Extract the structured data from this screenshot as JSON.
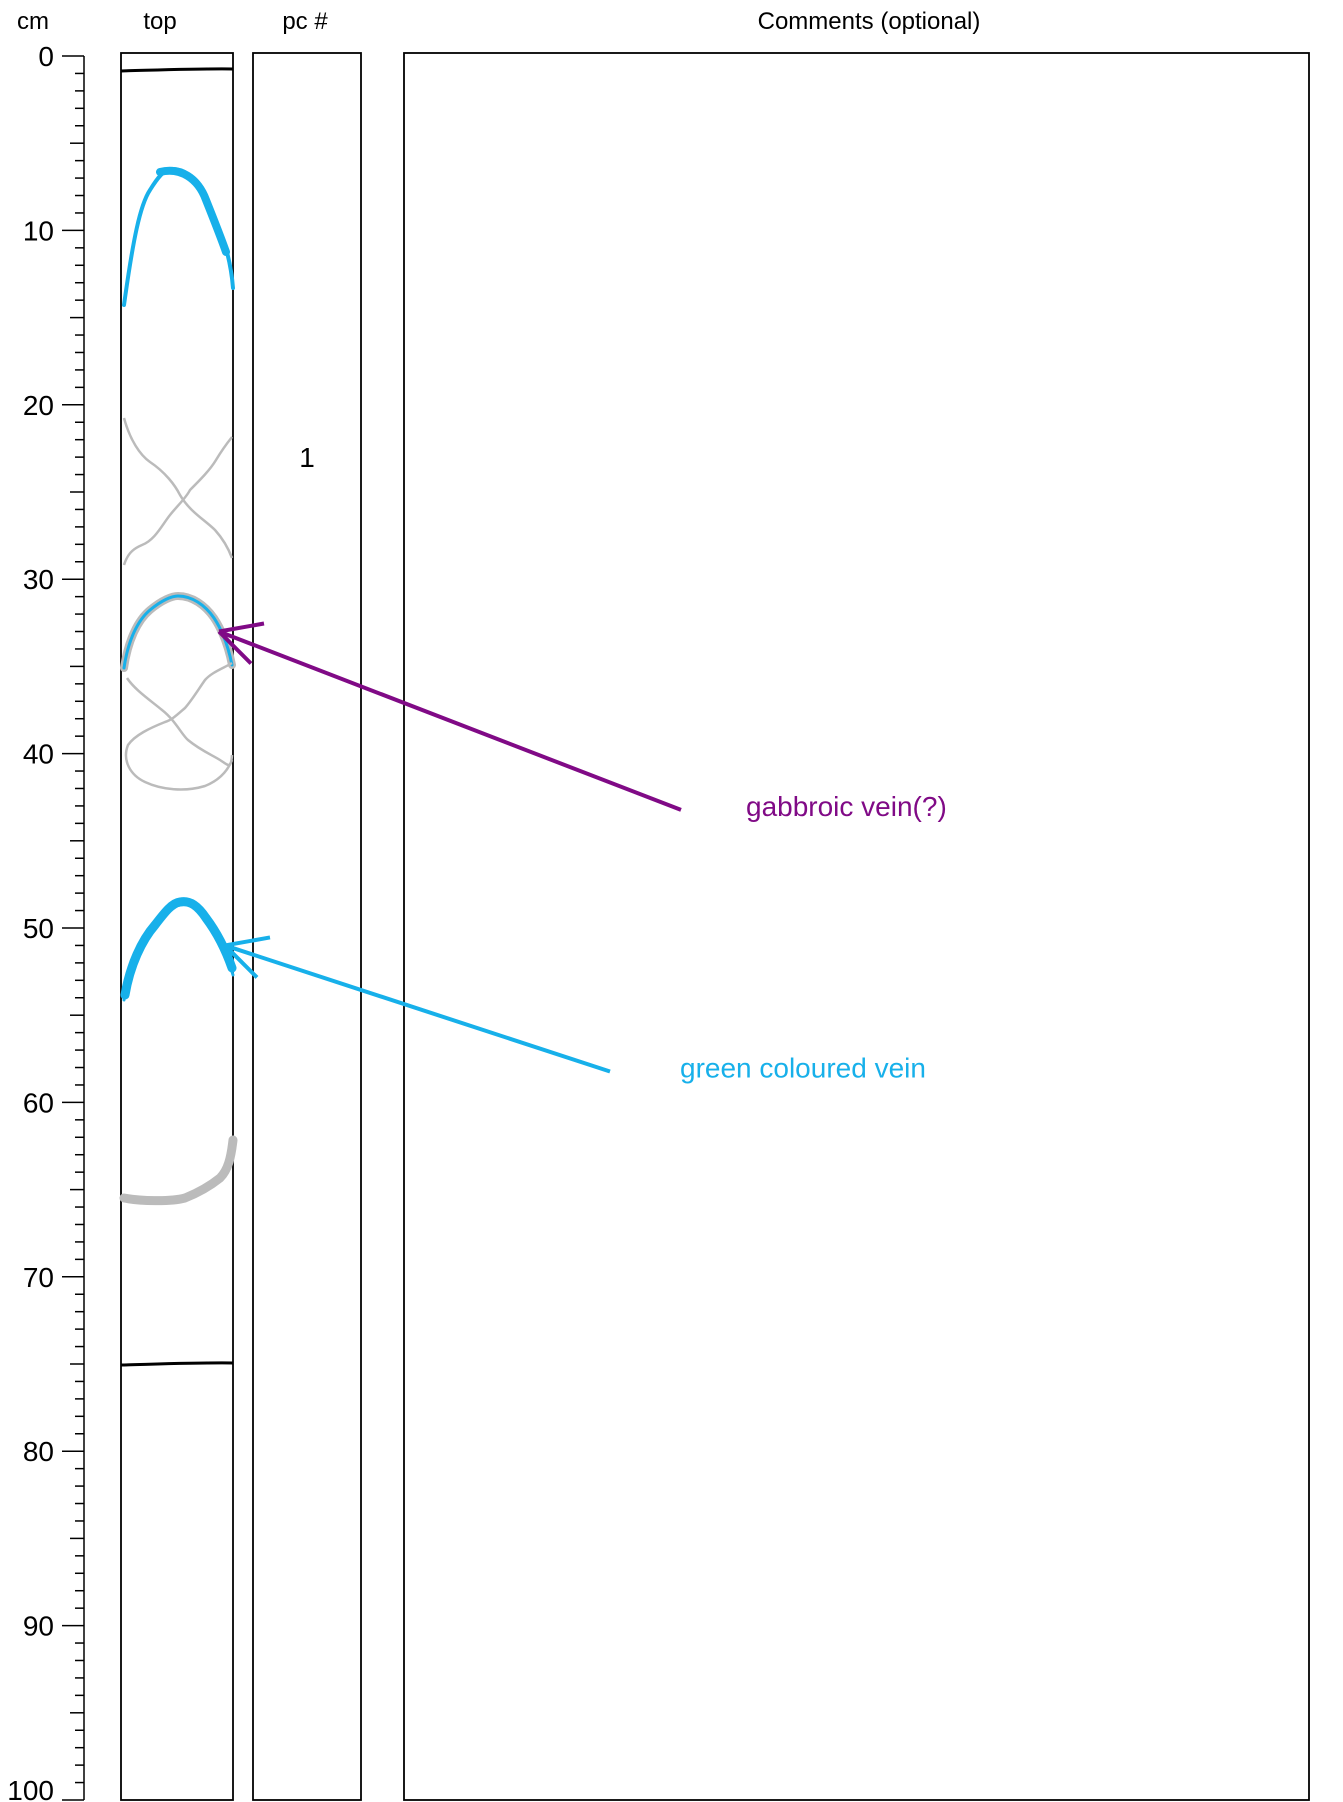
{
  "headers": {
    "depth_unit": "cm",
    "core_column": "top",
    "piece_column": "pc #",
    "comments_column": "Comments (optional)"
  },
  "depth_scale": {
    "min": 0,
    "max": 100,
    "major_step": 10,
    "minor_step": 1,
    "tick_labels": [
      "0",
      "10",
      "20",
      "30",
      "40",
      "50",
      "60",
      "70",
      "80",
      "90",
      "100"
    ]
  },
  "pieces": [
    {
      "label": "1",
      "depth_cm": 23
    }
  ],
  "piece_boundaries_cm": [
    0.8,
    75
  ],
  "colors": {
    "green_vein": "#17b0ea",
    "gabbroic_vein": "#800a86",
    "gray_vein": "#bbbbbb",
    "boundary": "#000000"
  },
  "annotations": {
    "gabbroic": {
      "text": "gabbroic vein(?)",
      "target_depth_cm": 33,
      "label_depth_cm": 43
    },
    "green": {
      "text": "green coloured vein",
      "target_depth_cm": 51,
      "label_depth_cm": 58
    }
  }
}
